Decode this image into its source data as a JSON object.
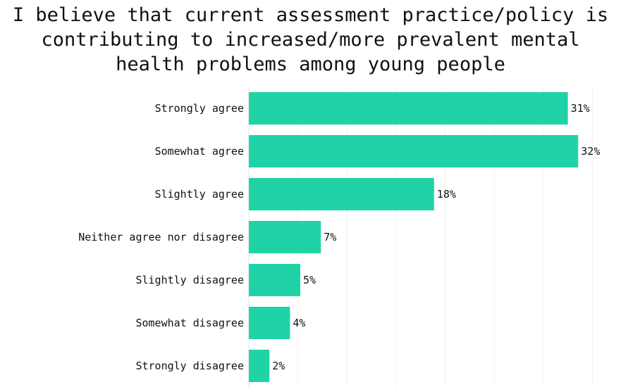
{
  "chart_data": {
    "type": "bar",
    "orientation": "horizontal",
    "title_lines": [
      "I believe that current assessment practice/policy is",
      "contributing to increased/more prevalent mental",
      "health problems among young people"
    ],
    "categories": [
      "Strongly agree",
      "Somewhat agree",
      "Slightly agree",
      "Neither agree nor disagree",
      "Slightly disagree",
      "Somewhat disagree",
      "Strongly disagree"
    ],
    "values": [
      31,
      32,
      18,
      7,
      5,
      4,
      2
    ],
    "data_labels": [
      "31%",
      "32%",
      "18%",
      "7%",
      "5%",
      "4%",
      "2%"
    ],
    "xlabel": "",
    "ylabel": "",
    "grid": true,
    "bar_color": "#1fd3a7"
  }
}
